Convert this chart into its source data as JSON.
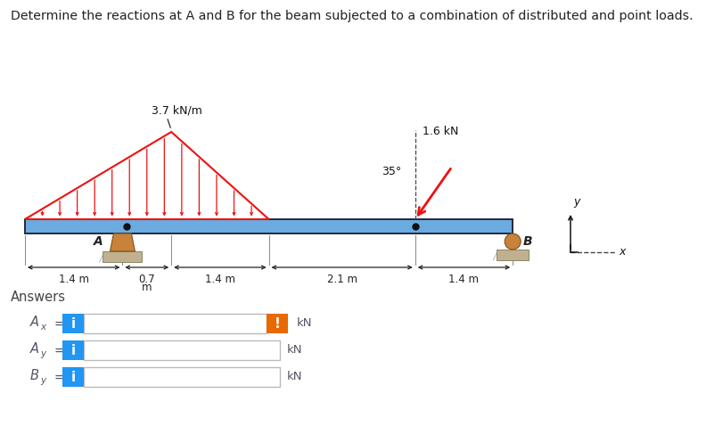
{
  "title": "Determine the reactions at A and B for the beam subjected to a combination of distributed and point loads.",
  "dist_load_label": "3.7 kN/m",
  "point_load_label": "1.6 kN",
  "angle_label": "35°",
  "dim_1": "1.4 m",
  "dim_2": "0.7",
  "dim_2b": "m",
  "dim_3": "1.4 m",
  "dim_4": "2.1 m",
  "dim_5": "1.4 m",
  "label_A": "A",
  "label_B": "B",
  "label_y": "y",
  "label_x": "x",
  "answers_label": "Answers",
  "ax_label": "A",
  "ax_sub": "x",
  "ay_label": "A",
  "ay_sub": "y",
  "by_label": "B",
  "by_sub": "y",
  "kN": "kN",
  "blue_color": "#2196F3",
  "orange_color": "#E86900",
  "beam_color": "#6AABE0",
  "red_color": "#EE1111",
  "support_color": "#C8823A",
  "ground_color": "#C0B090",
  "bg_color": "#FFFFFF",
  "text_color": "#555566"
}
